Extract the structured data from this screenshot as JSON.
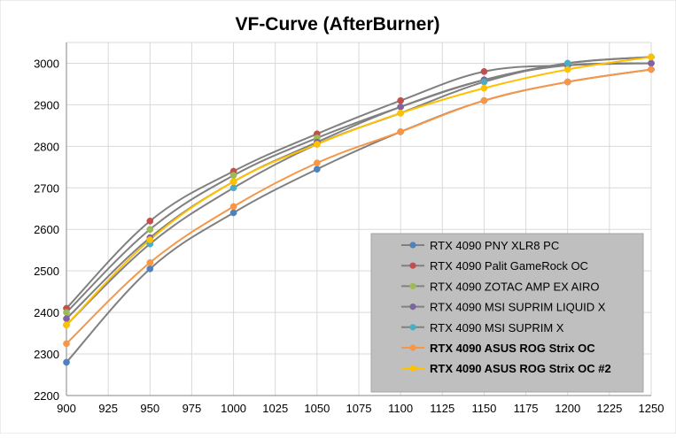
{
  "chart_data": {
    "type": "line",
    "title": "VF-Curve (AfterBurner)",
    "xlabel": "",
    "ylabel": "",
    "xlim": [
      900,
      1250
    ],
    "ylim": [
      2200,
      3050
    ],
    "x_ticks": [
      900,
      925,
      950,
      975,
      1000,
      1025,
      1050,
      1075,
      1100,
      1125,
      1150,
      1175,
      1200,
      1225,
      1250
    ],
    "y_ticks": [
      2200,
      2300,
      2400,
      2500,
      2600,
      2700,
      2800,
      2900,
      3000
    ],
    "grid": true,
    "legend_position": "bottom-right",
    "series": [
      {
        "name": "RTX 4090 PNY XLR8 PC",
        "color": "#4F81BD",
        "line_color": "#808080",
        "bold": false,
        "points": [
          [
            900,
            2280
          ],
          [
            950,
            2505
          ],
          [
            1000,
            2640
          ],
          [
            1050,
            2745
          ],
          [
            1100,
            2835
          ],
          [
            1150,
            2910
          ],
          [
            1200,
            2955
          ],
          [
            1250,
            2985
          ]
        ]
      },
      {
        "name": "RTX 4090 Palit GameRock OC",
        "color": "#C0504D",
        "line_color": "#808080",
        "bold": false,
        "points": [
          [
            900,
            2410
          ],
          [
            950,
            2620
          ],
          [
            1000,
            2740
          ],
          [
            1050,
            2830
          ],
          [
            1100,
            2910
          ],
          [
            1150,
            2980
          ],
          [
            1200,
            2995
          ],
          [
            1250,
            3000
          ]
        ]
      },
      {
        "name": "RTX 4090 ZOTAC AMP EX AIRO",
        "color": "#9BBB59",
        "line_color": "#808080",
        "bold": false,
        "points": [
          [
            900,
            2400
          ],
          [
            950,
            2600
          ],
          [
            1000,
            2730
          ],
          [
            1050,
            2820
          ],
          [
            1100,
            2895
          ],
          [
            1150,
            2960
          ],
          [
            1200,
            3000
          ],
          [
            1250,
            3015
          ]
        ]
      },
      {
        "name": "RTX 4090 MSI SUPRIM LIQUID X",
        "color": "#8064A2",
        "line_color": "#808080",
        "bold": false,
        "points": [
          [
            900,
            2385
          ],
          [
            950,
            2580
          ],
          [
            1000,
            2715
          ],
          [
            1050,
            2810
          ],
          [
            1100,
            2895
          ],
          [
            1150,
            2960
          ],
          [
            1200,
            2995
          ],
          [
            1250,
            3000
          ]
        ]
      },
      {
        "name": "RTX 4090 MSI SUPRIM X",
        "color": "#4BACC6",
        "line_color": "#808080",
        "bold": false,
        "points": [
          [
            900,
            2370
          ],
          [
            950,
            2565
          ],
          [
            1000,
            2700
          ],
          [
            1050,
            2805
          ],
          [
            1100,
            2880
          ],
          [
            1150,
            2955
          ],
          [
            1200,
            3000
          ],
          [
            1250,
            3015
          ]
        ]
      },
      {
        "name": "RTX 4090 ASUS ROG Strix OC",
        "color": "#F79646",
        "line_color": "#F79646",
        "bold": true,
        "points": [
          [
            900,
            2325
          ],
          [
            950,
            2520
          ],
          [
            1000,
            2655
          ],
          [
            1050,
            2760
          ],
          [
            1100,
            2835
          ],
          [
            1150,
            2910
          ],
          [
            1200,
            2955
          ],
          [
            1250,
            2985
          ]
        ]
      },
      {
        "name": "RTX 4090 ASUS ROG Strix OC #2",
        "color": "#FFC000",
        "line_color": "#FFC000",
        "bold": true,
        "points": [
          [
            900,
            2370
          ],
          [
            950,
            2575
          ],
          [
            1000,
            2715
          ],
          [
            1050,
            2805
          ],
          [
            1100,
            2880
          ],
          [
            1150,
            2940
          ],
          [
            1200,
            2985
          ],
          [
            1250,
            3015
          ]
        ]
      }
    ]
  }
}
